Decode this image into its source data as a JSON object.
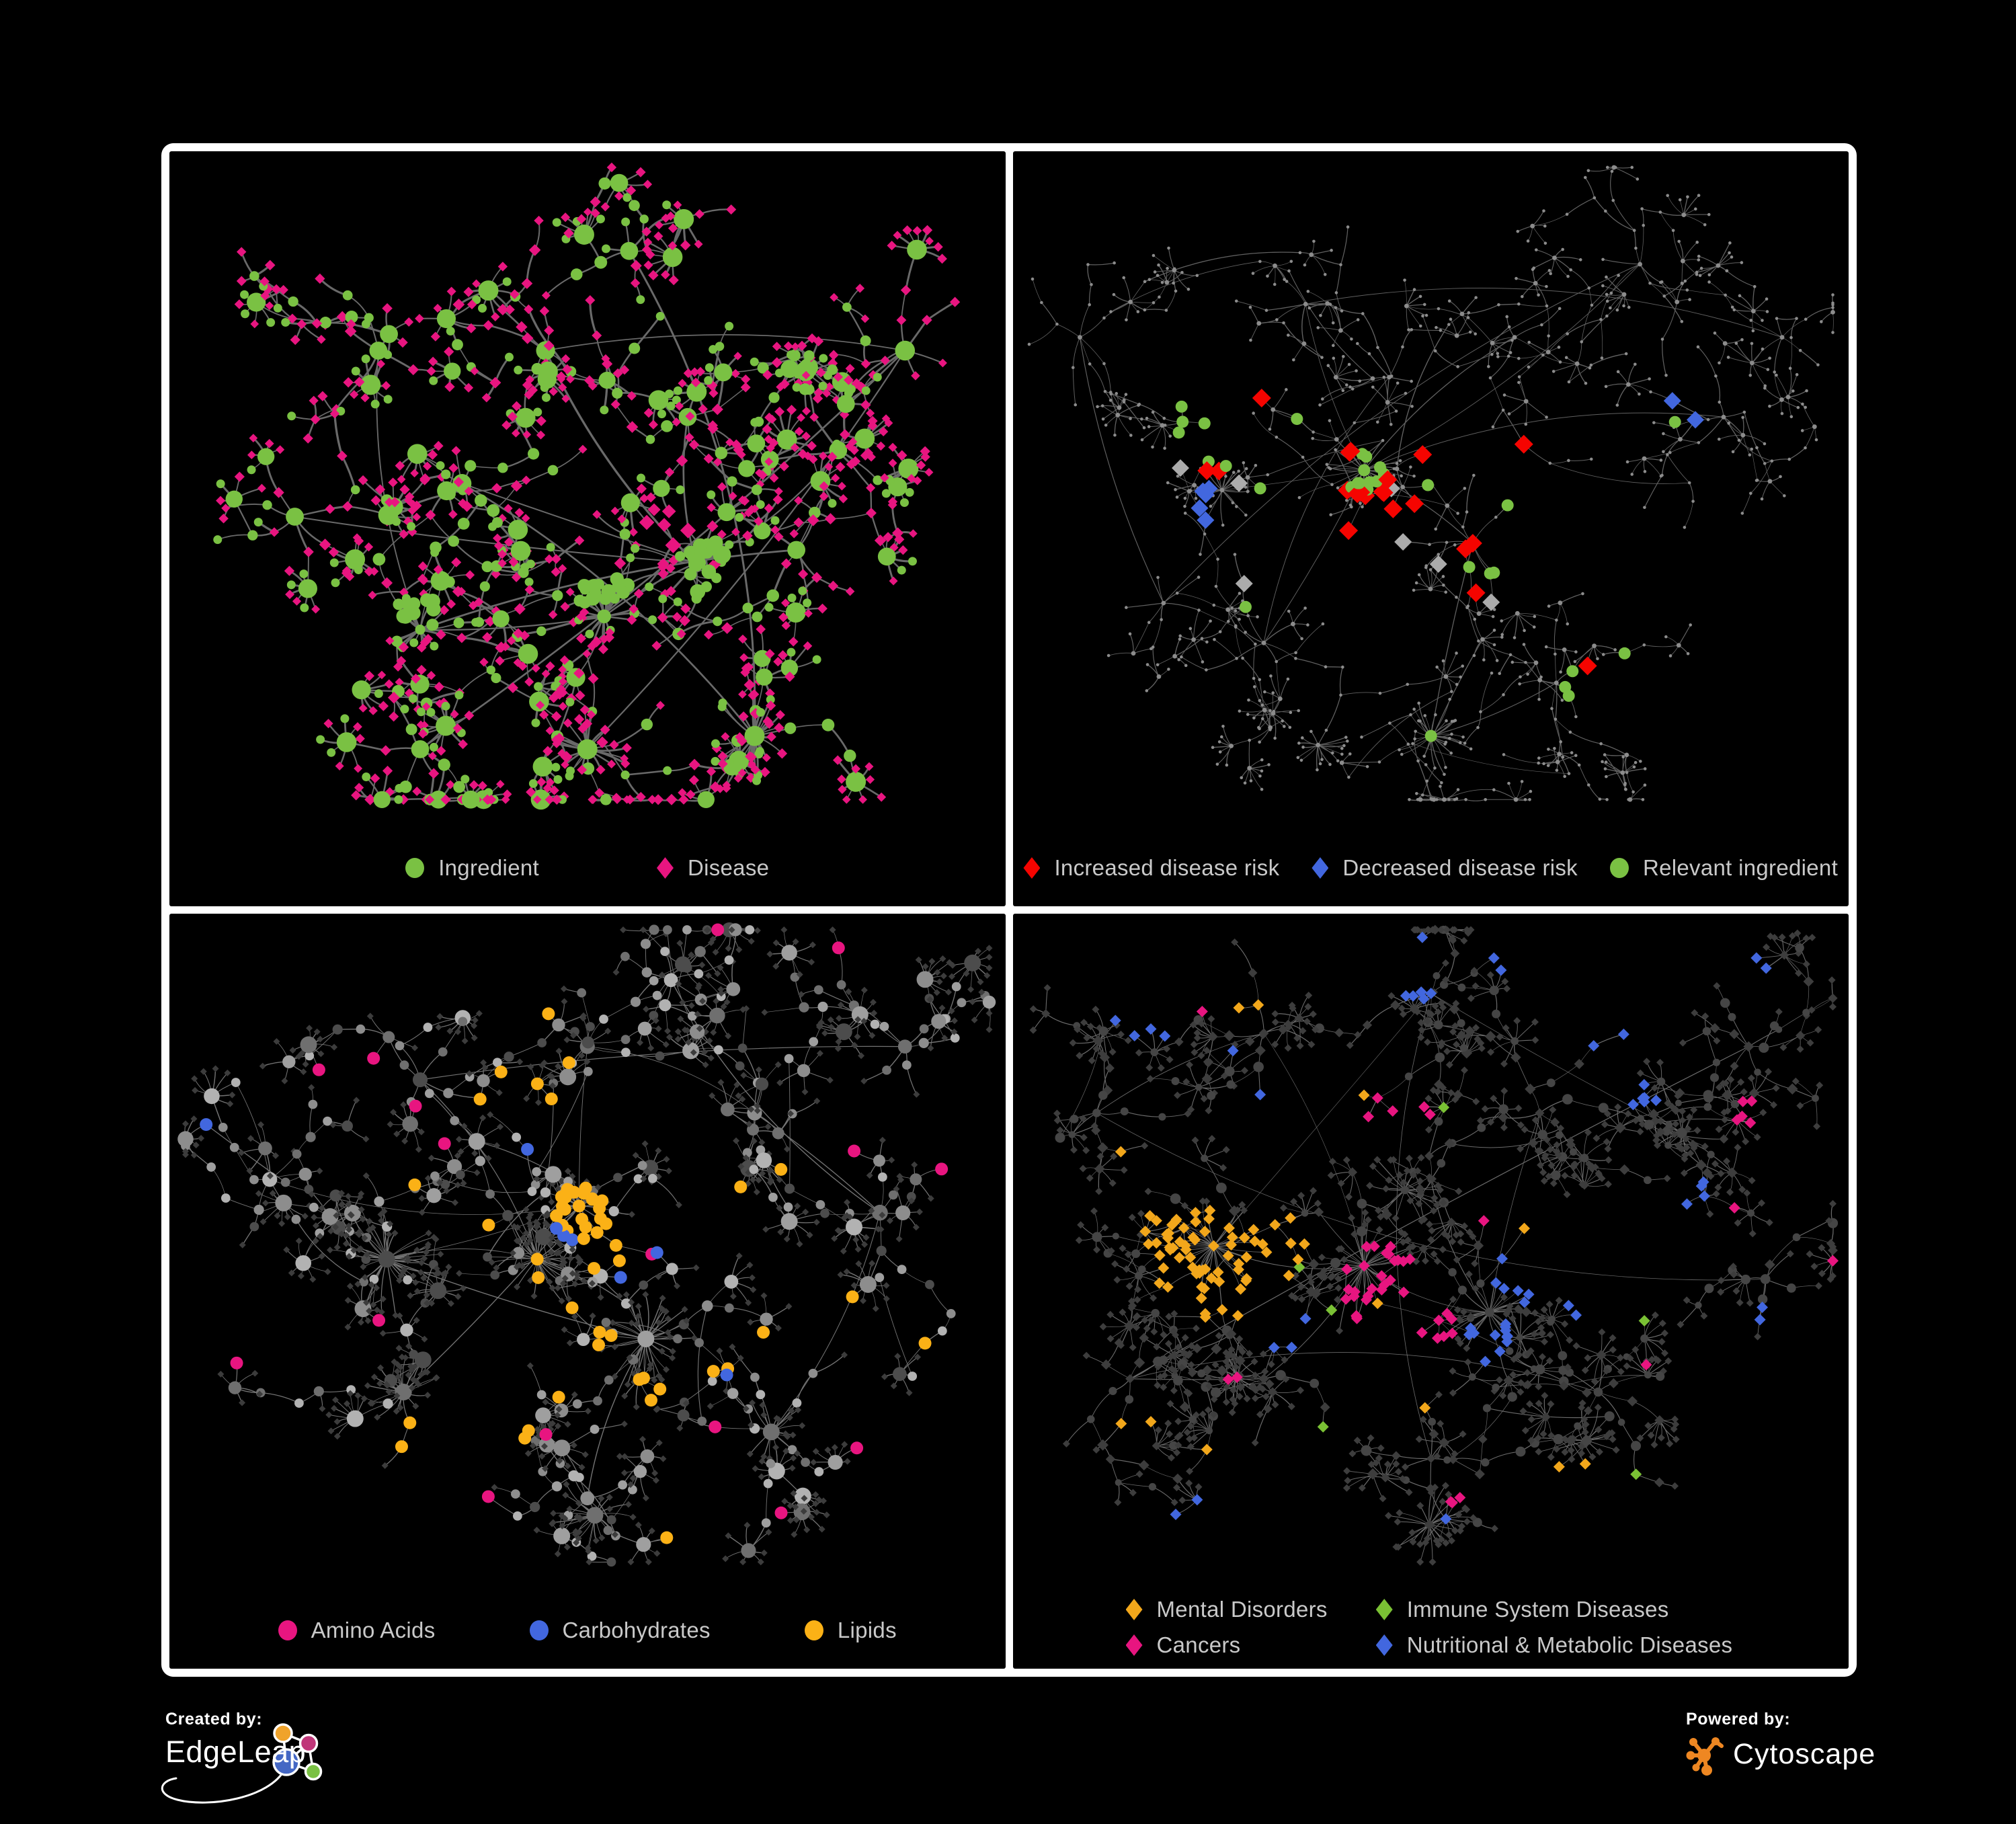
{
  "page": {
    "background": "#000000",
    "frame_color": "#ffffff",
    "legend_text_color": "#c9c9c9"
  },
  "panels": [
    {
      "id": "ingredient-disease",
      "legend": [
        {
          "label": "Ingredient",
          "shape": "circle",
          "color": "#7AC143"
        },
        {
          "label": "Disease",
          "shape": "diamond",
          "color": "#E81580"
        }
      ]
    },
    {
      "id": "disease-risk",
      "legend": [
        {
          "label": "Increased disease risk",
          "shape": "diamond",
          "color": "#F50400"
        },
        {
          "label": "Decreased disease risk",
          "shape": "diamond",
          "color": "#4267DF"
        },
        {
          "label": "Relevant ingredient",
          "shape": "circle",
          "color": "#7AC143"
        }
      ]
    },
    {
      "id": "nutrient-classes",
      "legend": [
        {
          "label": "Amino Acids",
          "shape": "circle",
          "color": "#E81580"
        },
        {
          "label": "Carbohydrates",
          "shape": "circle",
          "color": "#4267DF"
        },
        {
          "label": "Lipids",
          "shape": "circle",
          "color": "#FBB116"
        }
      ]
    },
    {
      "id": "disease-classes",
      "legend": [
        {
          "label": "Mental Disorders",
          "shape": "diamond",
          "color": "#F2A71B"
        },
        {
          "label": "Immune System Diseases",
          "shape": "diamond",
          "color": "#7AC134"
        },
        {
          "label": "Cancers",
          "shape": "diamond",
          "color": "#E81580"
        },
        {
          "label": "Nutritional & Metabolic Diseases",
          "shape": "diamond",
          "color": "#4267DF"
        }
      ]
    }
  ],
  "footer": {
    "created_by_label": "Created by:",
    "edgeleap_name": "EdgeLeap",
    "powered_by_label": "Powered by:",
    "cytoscape_name": "Cytoscape",
    "edgeleap_logo_colors": {
      "node_top_left": "#F0A32B",
      "node_top_right": "#C03679",
      "node_center": "#4467C4",
      "node_bottom_right": "#7AC143",
      "stroke": "#ffffff"
    },
    "cytoscape_logo_color": "#EE8722"
  }
}
